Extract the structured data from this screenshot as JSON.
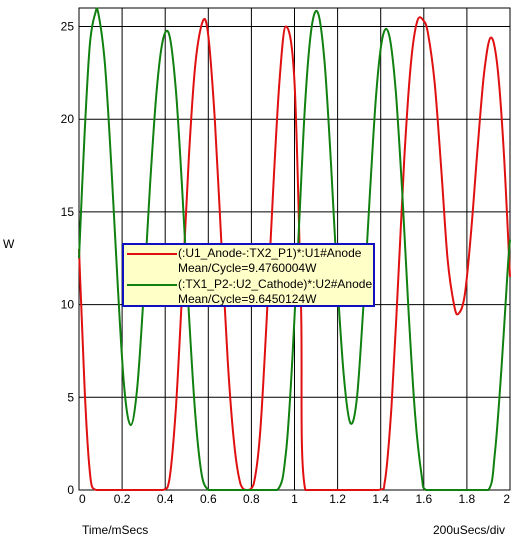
{
  "chart_data": {
    "type": "line",
    "xlabel": "Time/mSecs",
    "ylabel": "W",
    "xscale_label": "200uSecs/div",
    "xlim": [
      0,
      2
    ],
    "ylim": [
      0,
      26
    ],
    "xticks": [
      0,
      0.2,
      0.4,
      0.6,
      0.8,
      1,
      1.2,
      1.4,
      1.6,
      1.8,
      2
    ],
    "xtick_labels": [
      "0",
      "0.2",
      "0.4",
      "0.6",
      "0.8",
      "1",
      "1.2",
      "1.4",
      "1.6",
      "1.8",
      "2"
    ],
    "yticks": [
      0,
      5,
      10,
      15,
      20,
      25
    ],
    "ytick_labels": [
      "0",
      "5",
      "10",
      "15",
      "20",
      "25"
    ],
    "grid": true,
    "legend_position": "center-left",
    "series": [
      {
        "name": "(:U1_Anode-:TX2_P1)*:U1#Anode",
        "stat": "Mean/Cycle=9.4760004W",
        "color": "#e01010",
        "x": [
          0,
          0.01,
          0.02,
          0.03,
          0.04,
          0.05,
          0.06,
          0.08,
          0.1,
          0.2,
          0.3,
          0.39,
          0.42,
          0.45,
          0.48,
          0.51,
          0.54,
          0.575,
          0.6,
          0.63,
          0.66,
          0.69,
          0.72,
          0.75,
          0.78,
          0.81,
          0.84,
          0.87,
          0.9,
          0.93,
          0.96,
          1.0,
          1.03,
          1.05,
          1.2,
          1.39,
          1.42,
          1.45,
          1.48,
          1.51,
          1.54,
          1.57,
          1.6,
          1.62,
          1.65,
          1.68,
          1.71,
          1.74,
          1.76,
          1.79,
          1.82,
          1.85,
          1.88,
          1.91,
          1.94,
          1.97,
          2.0
        ],
        "y": [
          13,
          10,
          7.2,
          4.5,
          2.5,
          1,
          0.2,
          0,
          0,
          0,
          0,
          0,
          0.6,
          4.5,
          11,
          18,
          23,
          25.3,
          24.5,
          20,
          13.5,
          7,
          2.5,
          0.3,
          0,
          0.3,
          3,
          9,
          16,
          22,
          25,
          22,
          10,
          0,
          0,
          0,
          0.5,
          4.5,
          11,
          18,
          23,
          25.3,
          25.3,
          24.6,
          22,
          17.5,
          12.5,
          10,
          9.5,
          10.5,
          14,
          18.5,
          22.5,
          24.4,
          23,
          18.5,
          11.5
        ]
      },
      {
        "name": "(:TX1_P2-:U2_Cathode)*:U2#Anode",
        "stat": "Mean/Cycle=9.6450124W",
        "color": "#108010",
        "x": [
          0,
          0.025,
          0.05,
          0.075,
          0.09,
          0.12,
          0.15,
          0.18,
          0.21,
          0.24,
          0.27,
          0.3,
          0.33,
          0.36,
          0.39,
          0.42,
          0.45,
          0.48,
          0.51,
          0.54,
          0.57,
          0.6,
          0.62,
          0.7,
          0.8,
          0.92,
          0.96,
          0.99,
          1.02,
          1.05,
          1.08,
          1.11,
          1.14,
          1.17,
          1.2,
          1.23,
          1.26,
          1.29,
          1.32,
          1.35,
          1.38,
          1.41,
          1.44,
          1.47,
          1.5,
          1.53,
          1.56,
          1.59,
          1.61,
          1.7,
          1.8,
          1.9,
          1.93,
          1.96,
          1.99,
          2.0
        ],
        "y": [
          12.5,
          19,
          24,
          25.7,
          25.7,
          23,
          17.5,
          11,
          5.5,
          3.5,
          5.5,
          10.5,
          16.5,
          21.5,
          24.3,
          24.5,
          21.5,
          16,
          9.5,
          4,
          0.8,
          0,
          0,
          0,
          0,
          0,
          2,
          7,
          14,
          21,
          25,
          25.7,
          23,
          17.5,
          11,
          6,
          3.6,
          5,
          10,
          16,
          21.5,
          24.5,
          24.5,
          21.5,
          16,
          9.5,
          4,
          0.8,
          0,
          0,
          0,
          0,
          2,
          6.5,
          12,
          13.5
        ]
      }
    ]
  }
}
